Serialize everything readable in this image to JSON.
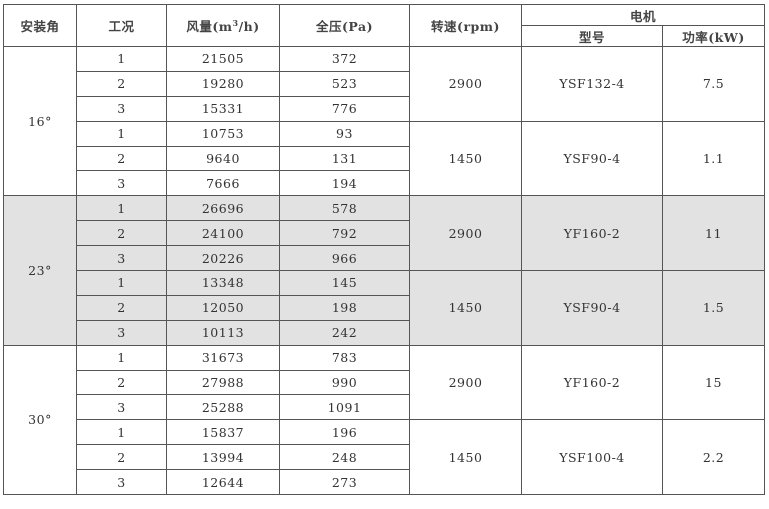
{
  "header": {
    "angle": "安装角",
    "condition": "工况",
    "flow": "风量(m³/h)",
    "pressure": "全压(Pa)",
    "speed": "转速(rpm)",
    "motor": "电机",
    "model": "型号",
    "power": "功率(kW)"
  },
  "groups": [
    {
      "angle": "16°",
      "shaded": false,
      "speeds": [
        {
          "speed": "2900",
          "model": "YSF132-4",
          "power": "7.5",
          "rows": [
            [
              "1",
              "21505",
              "372"
            ],
            [
              "2",
              "19280",
              "523"
            ],
            [
              "3",
              "15331",
              "776"
            ]
          ]
        },
        {
          "speed": "1450",
          "model": "YSF90-4",
          "power": "1.1",
          "rows": [
            [
              "1",
              "10753",
              "93"
            ],
            [
              "2",
              "9640",
              "131"
            ],
            [
              "3",
              "7666",
              "194"
            ]
          ]
        }
      ]
    },
    {
      "angle": "23°",
      "shaded": true,
      "speeds": [
        {
          "speed": "2900",
          "model": "YF160-2",
          "power": "11",
          "rows": [
            [
              "1",
              "26696",
              "578"
            ],
            [
              "2",
              "24100",
              "792"
            ],
            [
              "3",
              "20226",
              "966"
            ]
          ]
        },
        {
          "speed": "1450",
          "model": "YSF90-4",
          "power": "1.5",
          "rows": [
            [
              "1",
              "13348",
              "145"
            ],
            [
              "2",
              "12050",
              "198"
            ],
            [
              "3",
              "10113",
              "242"
            ]
          ]
        }
      ]
    },
    {
      "angle": "30°",
      "shaded": false,
      "speeds": [
        {
          "speed": "2900",
          "model": "YF160-2",
          "power": "15",
          "rows": [
            [
              "1",
              "31673",
              "783"
            ],
            [
              "2",
              "27988",
              "990"
            ],
            [
              "3",
              "25288",
              "1091"
            ]
          ]
        },
        {
          "speed": "1450",
          "model": "YSF100-4",
          "power": "2.2",
          "rows": [
            [
              "1",
              "15837",
              "196"
            ],
            [
              "2",
              "13994",
              "248"
            ],
            [
              "3",
              "12644",
              "273"
            ]
          ]
        }
      ]
    }
  ],
  "colors": {
    "shaded_row": "#e2e2e2",
    "border": "#555555"
  }
}
